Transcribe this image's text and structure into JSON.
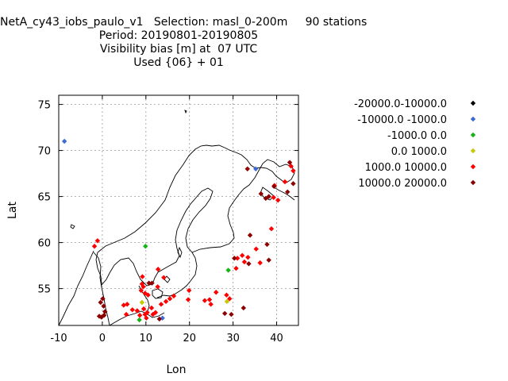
{
  "chart_data": {
    "type": "scatter",
    "title": [
      "NetA_cy43_iobs_paulo_v1   Selection: masl_0-200m     90 stations",
      "Period: 20190801-20190805",
      "Visibility bias [m] at  07 UTC",
      "Used {06} + 01"
    ],
    "xlabel": "Lon",
    "ylabel": "Lat",
    "xlim": [
      -10,
      45
    ],
    "ylim": [
      51,
      76
    ],
    "xticks": [
      -10,
      0,
      10,
      20,
      30,
      40
    ],
    "yticks": [
      55,
      60,
      65,
      70,
      75
    ],
    "grid": true,
    "legend_position": "right",
    "series": [
      {
        "name": "-20000.0-10000.0",
        "color": "#000000",
        "points": []
      },
      {
        "name": "-10000.0 -1000.0",
        "color": "#3d6bd6",
        "points": [
          [
            -8.7,
            71.0
          ],
          [
            35.2,
            68.0
          ],
          [
            13.8,
            51.8
          ]
        ]
      },
      {
        "name": "-1000.0 0.0",
        "color": "#16b416",
        "points": [
          [
            9.9,
            59.6
          ],
          [
            28.9,
            57.0
          ],
          [
            8.5,
            51.6
          ]
        ]
      },
      {
        "name": "0.0 1000.0",
        "color": "#c8c800",
        "points": [
          [
            9.1,
            53.5
          ],
          [
            28.6,
            53.6
          ]
        ]
      },
      {
        "name": "1000.0 10000.0",
        "color": "#ff0000",
        "points": [
          [
            -1.1,
            60.2
          ],
          [
            -1.8,
            59.6
          ],
          [
            41.9,
            66.6
          ],
          [
            39.5,
            66.2
          ],
          [
            40.3,
            64.6
          ],
          [
            39.3,
            64.9
          ],
          [
            43.3,
            68.3
          ],
          [
            43.8,
            67.8
          ],
          [
            38.8,
            61.5
          ],
          [
            35.3,
            59.3
          ],
          [
            32.1,
            58.6
          ],
          [
            31.0,
            58.3
          ],
          [
            33.4,
            58.4
          ],
          [
            32.6,
            57.9
          ],
          [
            36.2,
            57.8
          ],
          [
            30.7,
            57.2
          ],
          [
            12.8,
            57.1
          ],
          [
            14.1,
            56.2
          ],
          [
            9.2,
            56.3
          ],
          [
            9.1,
            55.5
          ],
          [
            9.4,
            55.2
          ],
          [
            8.9,
            54.8
          ],
          [
            9.8,
            54.5
          ],
          [
            10.5,
            54.3
          ],
          [
            16.4,
            54.2
          ],
          [
            15.5,
            53.9
          ],
          [
            19.9,
            54.8
          ],
          [
            23.5,
            53.7
          ],
          [
            24.6,
            53.8
          ],
          [
            26.1,
            54.6
          ],
          [
            24.9,
            53.3
          ],
          [
            14.6,
            53.6
          ],
          [
            19.7,
            53.8
          ],
          [
            28.5,
            54.3
          ],
          [
            29.2,
            53.9
          ],
          [
            4.9,
            53.2
          ],
          [
            5.7,
            53.3
          ],
          [
            6.9,
            52.7
          ],
          [
            8.0,
            52.6
          ],
          [
            9.5,
            52.8
          ],
          [
            10.3,
            52.4
          ],
          [
            11.3,
            52.9
          ],
          [
            12.2,
            52.4
          ],
          [
            10.1,
            51.8
          ],
          [
            11.6,
            52.2
          ],
          [
            5.5,
            52.2
          ],
          [
            8.6,
            52.1
          ],
          [
            9.8,
            52.2
          ],
          [
            13.5,
            53.3
          ],
          [
            12.7,
            55.2
          ]
        ]
      },
      {
        "name": "10000.0 20000.0",
        "color": "#8b0000",
        "points": [
          [
            43.0,
            68.7
          ],
          [
            33.3,
            68.0
          ],
          [
            36.4,
            65.3
          ],
          [
            37.5,
            64.8
          ],
          [
            38.2,
            65.0
          ],
          [
            42.5,
            65.5
          ],
          [
            43.8,
            66.4
          ],
          [
            33.9,
            60.8
          ],
          [
            37.8,
            59.8
          ],
          [
            30.3,
            58.3
          ],
          [
            33.6,
            57.7
          ],
          [
            38.2,
            58.1
          ],
          [
            10.7,
            55.6
          ],
          [
            11.4,
            55.6
          ],
          [
            0.1,
            53.9
          ],
          [
            -0.4,
            53.5
          ],
          [
            0.3,
            53.1
          ],
          [
            0.6,
            52.5
          ],
          [
            0.4,
            52.1
          ],
          [
            -0.7,
            52.0
          ],
          [
            -0.2,
            51.9
          ],
          [
            13.1,
            51.7
          ],
          [
            28.1,
            52.3
          ],
          [
            29.6,
            52.2
          ],
          [
            32.4,
            52.9
          ],
          [
            39.4,
            66.1
          ]
        ]
      }
    ]
  }
}
